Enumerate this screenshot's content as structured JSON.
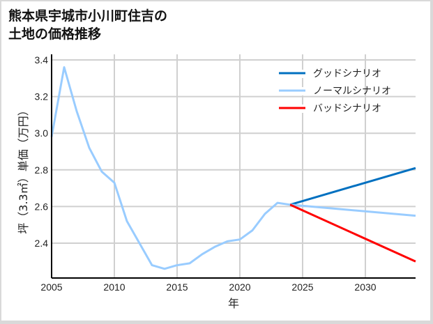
{
  "title_lines": [
    "熊本県宇城市小川町住吉の",
    "土地の価格推移"
  ],
  "chart_data": {
    "type": "line",
    "title": "熊本県宇城市小川町住吉の土地の価格推移",
    "xlabel": "年",
    "ylabel": "坪（3.3㎡）単価（万円）",
    "xlim": [
      2005,
      2034
    ],
    "ylim": [
      2.21,
      3.4
    ],
    "x_ticks": [
      2005,
      2010,
      2015,
      2020,
      2025,
      2030
    ],
    "y_ticks": [
      2.4,
      2.6,
      2.8,
      3.0,
      3.2,
      3.4
    ],
    "grid": true,
    "legend_position": "upper right",
    "series": [
      {
        "name": "ノーマルシナリオ",
        "role": "history",
        "color": "#99ccff",
        "x": [
          2005,
          2006,
          2007,
          2008,
          2009,
          2010,
          2011,
          2012,
          2013,
          2014,
          2015,
          2016,
          2017,
          2018,
          2019,
          2020,
          2021,
          2022,
          2023,
          2024
        ],
        "values": [
          2.98,
          3.36,
          3.12,
          2.92,
          2.79,
          2.73,
          2.52,
          2.4,
          2.28,
          2.26,
          2.28,
          2.29,
          2.34,
          2.38,
          2.41,
          2.42,
          2.47,
          2.56,
          2.62,
          2.61
        ]
      },
      {
        "name": "グッドシナリオ",
        "color": "#0070c0",
        "x": [
          2024,
          2034
        ],
        "values": [
          2.61,
          2.81
        ]
      },
      {
        "name": "ノーマルシナリオ",
        "color": "#99ccff",
        "x": [
          2024,
          2034
        ],
        "values": [
          2.61,
          2.55
        ]
      },
      {
        "name": "バッドシナリオ",
        "color": "#ff0000",
        "x": [
          2024,
          2034
        ],
        "values": [
          2.61,
          2.3
        ]
      }
    ],
    "legend": [
      {
        "label": "グッドシナリオ",
        "color": "#0070c0"
      },
      {
        "label": "ノーマルシナリオ",
        "color": "#99ccff"
      },
      {
        "label": "バッドシナリオ",
        "color": "#ff0000"
      }
    ]
  }
}
